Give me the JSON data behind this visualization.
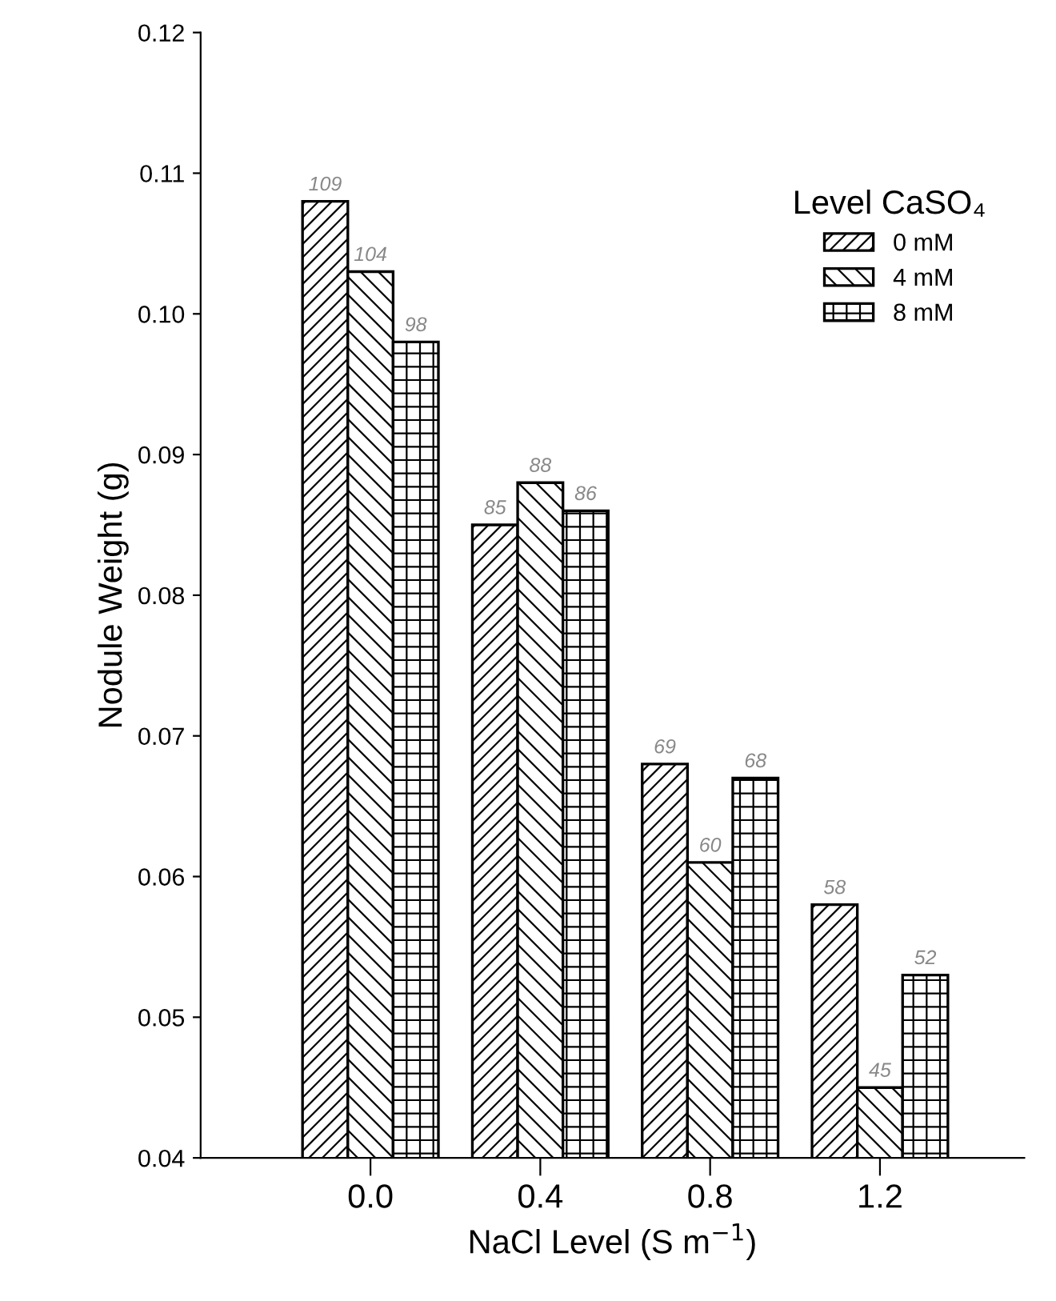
{
  "chart_data": {
    "type": "bar",
    "xlabel": "NaCl Level (S m$^{−1}$)",
    "ylabel": "Nodule Weight (g)",
    "legend_title": "Level CaSO₄",
    "legend": "top right",
    "grid": false,
    "categories": [
      "0.0",
      "0.4",
      "0.8",
      "1.2"
    ],
    "ylim": [
      0.04,
      0.12
    ],
    "yticks": [
      0.04,
      0.05,
      0.06,
      0.07,
      0.08,
      0.09,
      {
        "value": 0.1,
        "label": "0.10"
      },
      0.11,
      0.12
    ],
    "series": [
      {
        "name": "0 mM",
        "color": "#000000",
        "values": [
          0.108,
          0.085,
          0.068,
          0.058
        ]
      },
      {
        "name": "4 mM",
        "color": "#000000",
        "values": [
          0.103,
          0.088,
          0.061,
          0.045
        ]
      },
      {
        "name": "8 mM",
        "color": "#000000",
        "values": [
          0.098,
          0.086,
          0.067,
          0.053
        ]
      }
    ],
    "annotations": [
      "109",
      "104",
      "98",
      "85",
      "88",
      "86",
      "69",
      "60",
      "68",
      "58",
      "45",
      "52"
    ]
  }
}
